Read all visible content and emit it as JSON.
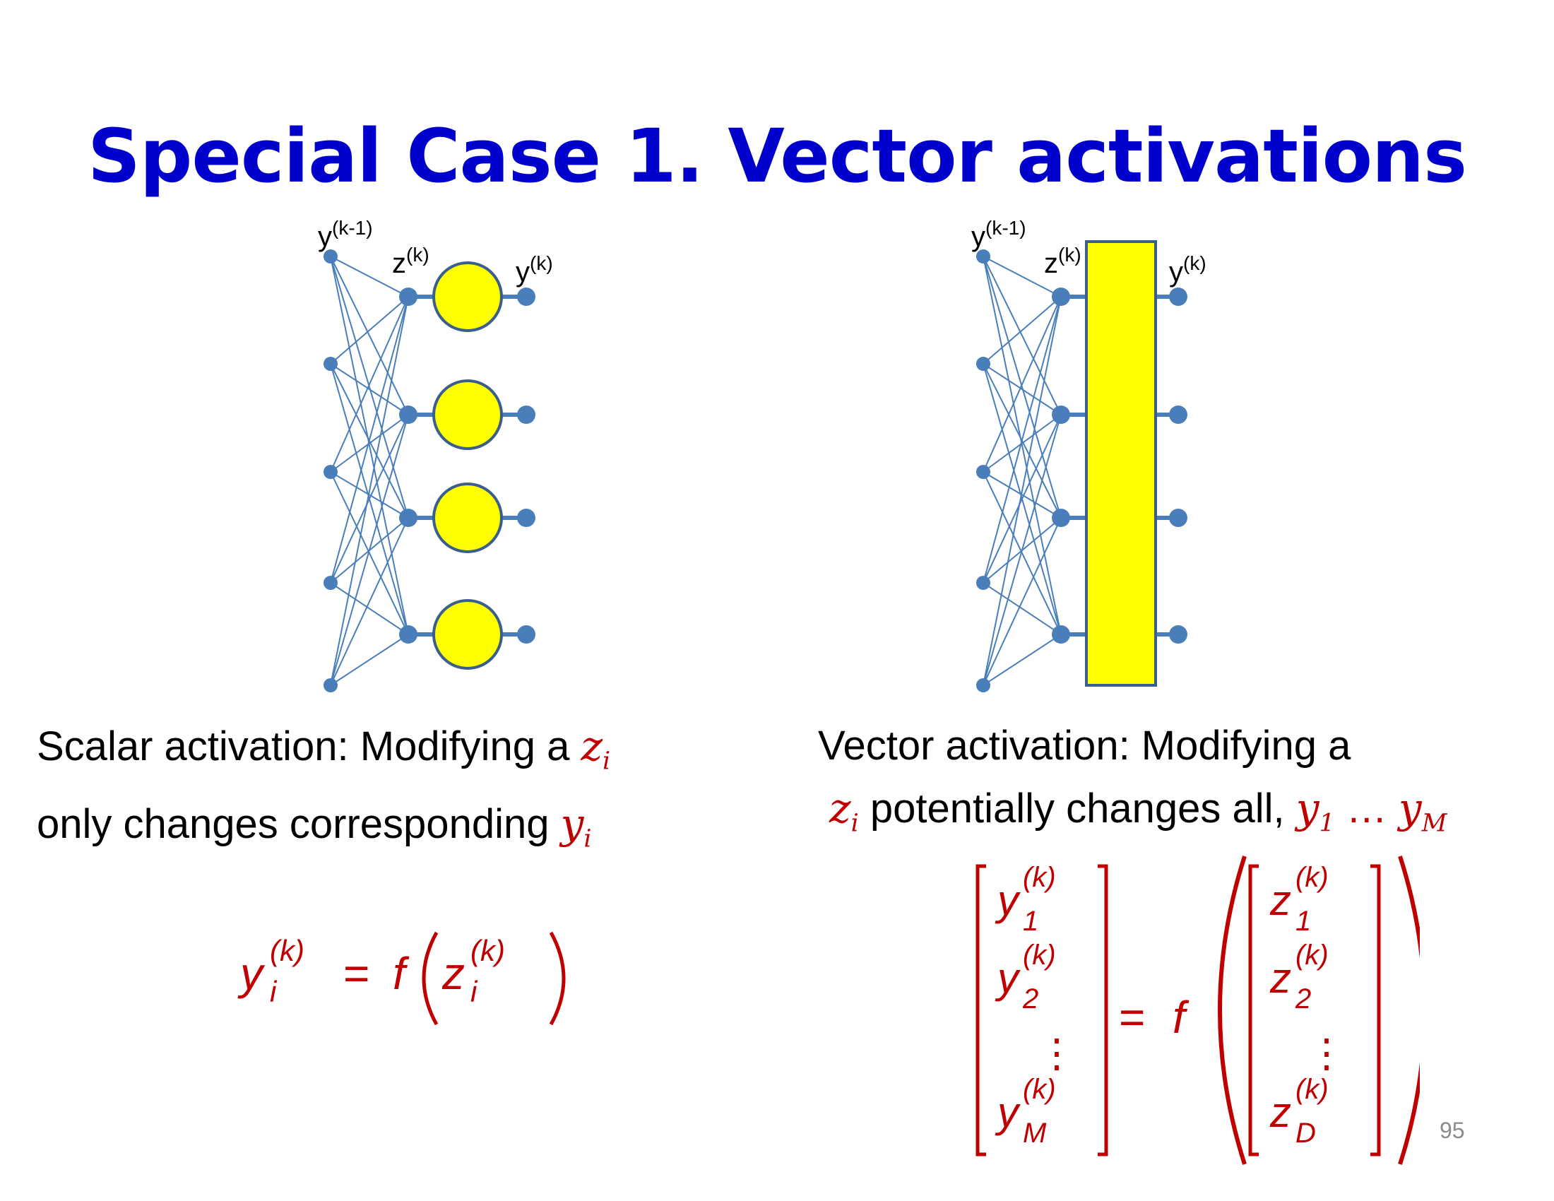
{
  "slide": {
    "title": "Special Case 1. Vector activations",
    "page_number": "95"
  },
  "left_diagram": {
    "label_prev": "y",
    "label_prev_sup": "(k-1)",
    "label_z": "z",
    "label_z_sup": "(k)",
    "label_y": "y",
    "label_y_sup": "(k)"
  },
  "right_diagram": {
    "label_prev": "y",
    "label_prev_sup": "(k-1)",
    "label_z": "z",
    "label_z_sup": "(k)",
    "label_y": "y",
    "label_y_sup": "(k)"
  },
  "left_caption": {
    "line1": "Scalar activation: Modifying a ",
    "var1": "z",
    "var1_sub": "i",
    "line2": "only changes corresponding ",
    "var2": "y",
    "var2_sub": "i"
  },
  "right_caption": {
    "line1": "Vector activation: Modifying a",
    "var1": "z",
    "var1_sub": "i",
    "line2": " potentially changes all, ",
    "var2": "y",
    "var2_sub": "1",
    "ellipsis": " … ",
    "var3": "y",
    "var3_sub": "M"
  },
  "left_equation": {
    "lhs": "y",
    "lhs_sub": "i",
    "sup": "(k)",
    "equals": "=",
    "func": "f",
    "arg": "z",
    "arg_sub": "i"
  },
  "right_equation": {
    "y_entries": [
      {
        "var": "y",
        "sub": "1",
        "sup": "(k)"
      },
      {
        "var": "y",
        "sub": "2",
        "sup": "(k)"
      },
      {
        "var": "y",
        "sub": "M",
        "sup": "(k)"
      }
    ],
    "z_entries": [
      {
        "var": "z",
        "sub": "1",
        "sup": "(k)"
      },
      {
        "var": "z",
        "sub": "2",
        "sup": "(k)"
      },
      {
        "var": "z",
        "sub": "D",
        "sup": "(k)"
      }
    ],
    "vdots": "⋮",
    "equals": "=",
    "func": "f"
  },
  "colors": {
    "title": "#0000cc",
    "math": "#c00000",
    "network": "#4a7ebb",
    "activation_fill": "#ffff00",
    "activation_stroke": "#3a5f8a"
  }
}
